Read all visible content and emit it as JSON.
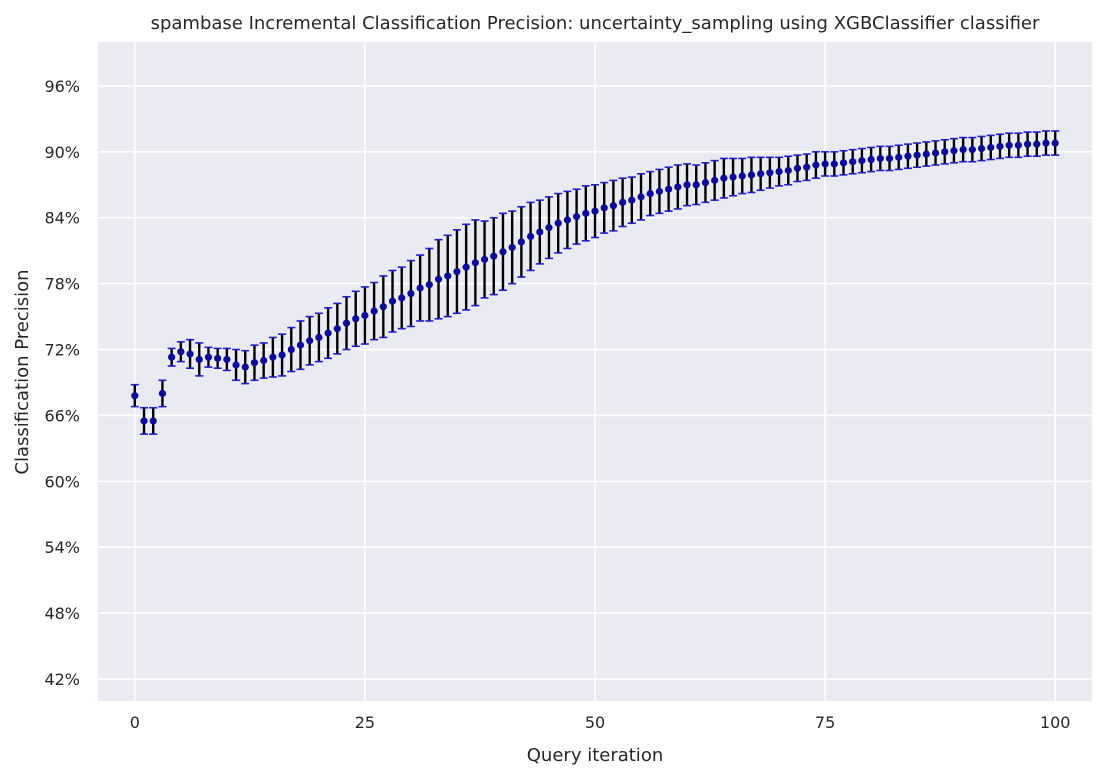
{
  "chart_data": {
    "type": "scatter",
    "title": "spambase Incremental Classification Precision: uncertainty_sampling using XGBClassifier classifier",
    "xlabel": "Query iteration",
    "ylabel": "Classification Precision",
    "xlim": [
      -4,
      104
    ],
    "ylim": [
      0.4,
      1.0
    ],
    "xticks": [
      0,
      25,
      50,
      75,
      100
    ],
    "yticks": [
      0.42,
      0.48,
      0.54,
      0.6,
      0.66,
      0.72,
      0.78,
      0.84,
      0.9,
      0.96
    ],
    "ytick_format": "percent",
    "grid": true,
    "colors": {
      "background": "#eaeaf2",
      "grid": "#ffffff",
      "marker": "#0b0b9c",
      "errorbar": "#000000",
      "cap": "#1f1fd0"
    },
    "x": [
      0,
      1,
      2,
      3,
      4,
      5,
      6,
      7,
      8,
      9,
      10,
      11,
      12,
      13,
      14,
      15,
      16,
      17,
      18,
      19,
      20,
      21,
      22,
      23,
      24,
      25,
      26,
      27,
      28,
      29,
      30,
      31,
      32,
      33,
      34,
      35,
      36,
      37,
      38,
      39,
      40,
      41,
      42,
      43,
      44,
      45,
      46,
      47,
      48,
      49,
      50,
      51,
      52,
      53,
      54,
      55,
      56,
      57,
      58,
      59,
      60,
      61,
      62,
      63,
      64,
      65,
      66,
      67,
      68,
      69,
      70,
      71,
      72,
      73,
      74,
      75,
      76,
      77,
      78,
      79,
      80,
      81,
      82,
      83,
      84,
      85,
      86,
      87,
      88,
      89,
      90,
      91,
      92,
      93,
      94,
      95,
      96,
      97,
      98,
      99,
      100
    ],
    "y": [
      0.678,
      0.655,
      0.655,
      0.68,
      0.713,
      0.718,
      0.716,
      0.711,
      0.713,
      0.712,
      0.711,
      0.706,
      0.704,
      0.708,
      0.71,
      0.713,
      0.715,
      0.72,
      0.724,
      0.728,
      0.731,
      0.735,
      0.739,
      0.744,
      0.748,
      0.751,
      0.755,
      0.759,
      0.764,
      0.767,
      0.771,
      0.776,
      0.779,
      0.784,
      0.787,
      0.791,
      0.795,
      0.799,
      0.802,
      0.805,
      0.809,
      0.813,
      0.818,
      0.823,
      0.827,
      0.831,
      0.835,
      0.838,
      0.841,
      0.844,
      0.846,
      0.849,
      0.851,
      0.854,
      0.856,
      0.859,
      0.862,
      0.864,
      0.866,
      0.868,
      0.87,
      0.87,
      0.872,
      0.874,
      0.876,
      0.877,
      0.878,
      0.879,
      0.88,
      0.881,
      0.882,
      0.883,
      0.885,
      0.886,
      0.888,
      0.889,
      0.889,
      0.89,
      0.891,
      0.892,
      0.893,
      0.894,
      0.894,
      0.895,
      0.896,
      0.897,
      0.898,
      0.899,
      0.9,
      0.901,
      0.902,
      0.902,
      0.903,
      0.904,
      0.905,
      0.906,
      0.906,
      0.907,
      0.907,
      0.908,
      0.908
    ],
    "yerr": [
      0.01,
      0.012,
      0.012,
      0.012,
      0.008,
      0.009,
      0.013,
      0.015,
      0.009,
      0.009,
      0.01,
      0.014,
      0.015,
      0.016,
      0.016,
      0.018,
      0.019,
      0.02,
      0.022,
      0.022,
      0.022,
      0.023,
      0.023,
      0.024,
      0.025,
      0.026,
      0.026,
      0.028,
      0.028,
      0.028,
      0.03,
      0.03,
      0.033,
      0.036,
      0.037,
      0.038,
      0.039,
      0.039,
      0.035,
      0.035,
      0.035,
      0.033,
      0.032,
      0.031,
      0.029,
      0.028,
      0.027,
      0.026,
      0.025,
      0.025,
      0.024,
      0.023,
      0.023,
      0.022,
      0.021,
      0.021,
      0.02,
      0.02,
      0.02,
      0.02,
      0.019,
      0.018,
      0.018,
      0.018,
      0.018,
      0.017,
      0.016,
      0.016,
      0.015,
      0.014,
      0.013,
      0.013,
      0.012,
      0.012,
      0.012,
      0.011,
      0.011,
      0.011,
      0.011,
      0.011,
      0.011,
      0.011,
      0.011,
      0.011,
      0.011,
      0.011,
      0.011,
      0.011,
      0.011,
      0.011,
      0.011,
      0.011,
      0.011,
      0.011,
      0.011,
      0.011,
      0.011,
      0.011,
      0.011,
      0.011,
      0.011
    ]
  }
}
